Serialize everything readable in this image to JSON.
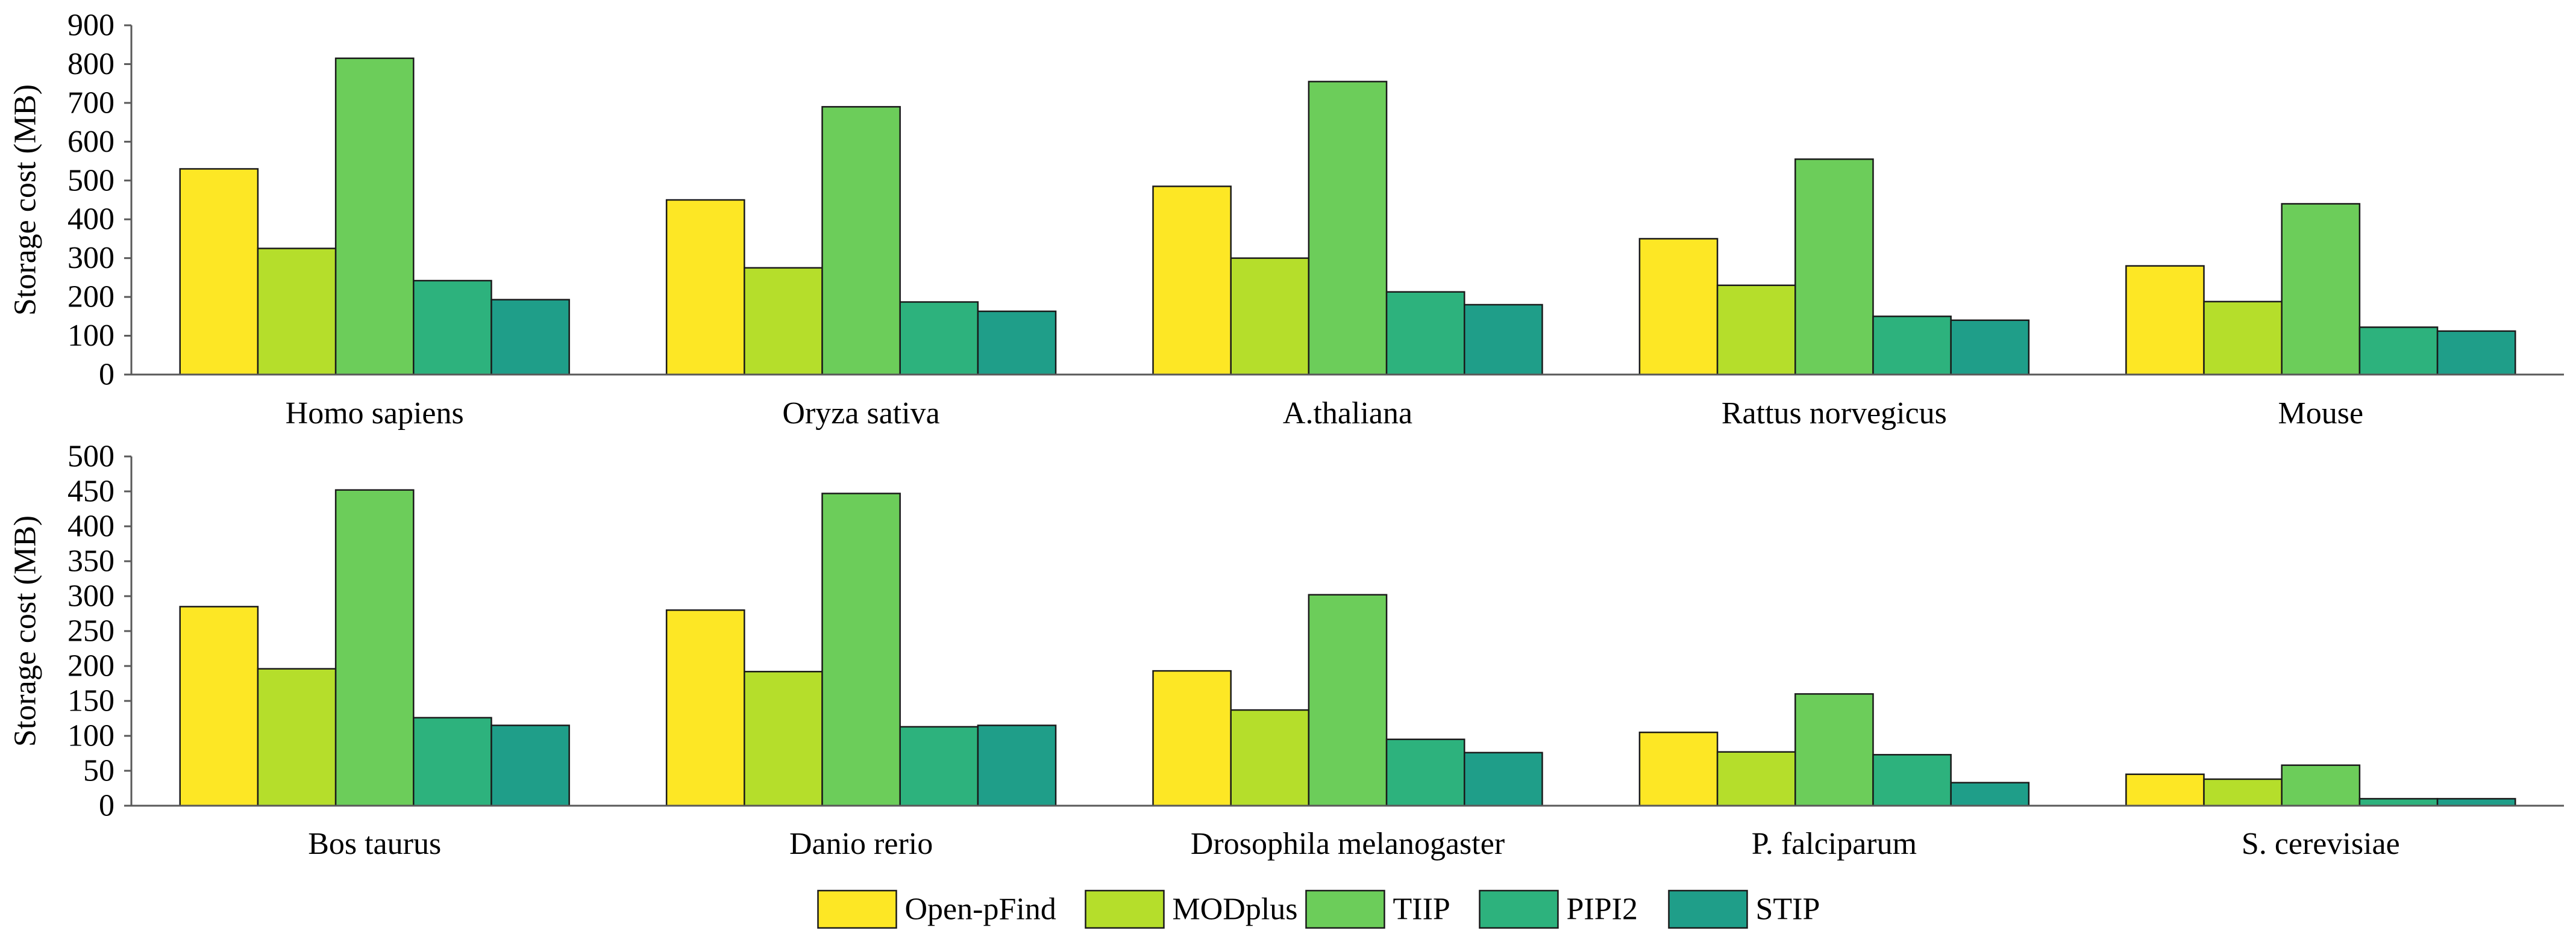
{
  "legend": {
    "series_names": [
      "Open-pFind",
      "MODplus",
      "TIIP",
      "PIPI2",
      "STIP"
    ],
    "colors": [
      "#fde725",
      "#b5de2b",
      "#6ccd5a",
      "#2db27d",
      "#1f9e89"
    ]
  },
  "chart_data": [
    {
      "type": "bar",
      "ylabel": "Storage cost (MB)",
      "ylim": [
        0,
        900
      ],
      "yticks": [
        "0",
        "100",
        "200",
        "300",
        "400",
        "500",
        "600",
        "700",
        "800",
        "900"
      ],
      "categories": [
        "Homo sapiens",
        "Oryza sativa",
        "A.thaliana",
        "Rattus norvegicus",
        "Mouse"
      ],
      "series": [
        {
          "name": "Open-pFind",
          "values": [
            530,
            450,
            485,
            350,
            280
          ]
        },
        {
          "name": "MODplus",
          "values": [
            325,
            275,
            300,
            230,
            188
          ]
        },
        {
          "name": "TIIP",
          "values": [
            815,
            690,
            755,
            555,
            440
          ]
        },
        {
          "name": "PIPI2",
          "values": [
            242,
            187,
            213,
            150,
            122
          ]
        },
        {
          "name": "STIP",
          "values": [
            193,
            163,
            180,
            140,
            112
          ]
        }
      ]
    },
    {
      "type": "bar",
      "ylabel": "Storage cost (MB)",
      "ylim": [
        0,
        500
      ],
      "yticks": [
        "0",
        "50",
        "100",
        "150",
        "200",
        "250",
        "300",
        "350",
        "400",
        "450",
        "500"
      ],
      "categories": [
        "Bos taurus",
        "Danio rerio",
        "Drosophila melanogaster",
        "P. falciparum",
        "S. cerevisiae"
      ],
      "series": [
        {
          "name": "Open-pFind",
          "values": [
            285,
            280,
            193,
            105,
            45
          ]
        },
        {
          "name": "MODplus",
          "values": [
            196,
            192,
            137,
            77,
            38
          ]
        },
        {
          "name": "TIIP",
          "values": [
            452,
            447,
            302,
            160,
            58
          ]
        },
        {
          "name": "PIPI2",
          "values": [
            126,
            113,
            95,
            73,
            10
          ]
        },
        {
          "name": "STIP",
          "values": [
            115,
            115,
            76,
            33,
            10
          ]
        }
      ]
    }
  ]
}
